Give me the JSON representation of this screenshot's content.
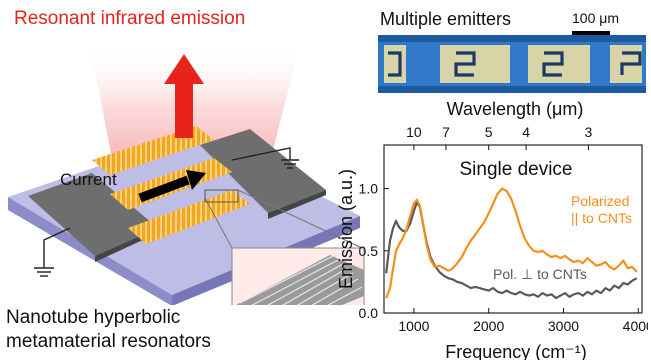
{
  "colors": {
    "title_red": "#e8231c",
    "polarized_orange": "#f39019",
    "perp_gray": "#595959",
    "gold": "#f0a020",
    "substrate": "#a7a7d6"
  },
  "left_panel": {
    "title": "Resonant infrared emission",
    "current_label": "Current",
    "caption_line1": "Nanotube hyperbolic",
    "caption_line2": "metamaterial resonators"
  },
  "emitters_panel": {
    "title": "Multiple emitters",
    "scalebar_label": "100 μm"
  },
  "chart_data": {
    "type": "line",
    "title": "Single device",
    "xlabel": "Frequency (cm⁻¹)",
    "top_xlabel": "Wavelength (μm)",
    "ylabel": "Emission (a.u.)",
    "xlim": [
      600,
      4050
    ],
    "ylim": [
      0,
      1.35
    ],
    "x_ticks": [
      1000,
      2000,
      3000,
      4000
    ],
    "x_tick_labels": [
      "1000",
      "2000",
      "3000",
      "4000"
    ],
    "y_ticks": [
      0.0,
      0.5,
      1.0
    ],
    "y_tick_labels": [
      "0.0",
      "0.5",
      "1.0"
    ],
    "top_ticks": [
      10,
      7,
      5,
      4,
      3
    ],
    "top_tick_labels": [
      "10",
      "7",
      "5",
      "4",
      "3"
    ],
    "series": [
      {
        "name": "Polarized || to CNTs",
        "label_line1": "Polarized",
        "label_line2": "|| to CNTs",
        "color": "#f39019",
        "x": [
          630,
          680,
          720,
          760,
          800,
          850,
          900,
          950,
          1000,
          1040,
          1080,
          1120,
          1170,
          1220,
          1280,
          1340,
          1400,
          1460,
          1520,
          1580,
          1640,
          1700,
          1760,
          1820,
          1880,
          1940,
          2000,
          2060,
          2120,
          2180,
          2240,
          2300,
          2360,
          2420,
          2480,
          2540,
          2600,
          2660,
          2720,
          2780,
          2840,
          2900,
          2960,
          3020,
          3080,
          3140,
          3200,
          3260,
          3320,
          3380,
          3440,
          3500,
          3560,
          3620,
          3680,
          3740,
          3800,
          3860,
          3920,
          3980
        ],
        "y": [
          0.12,
          0.2,
          0.35,
          0.5,
          0.55,
          0.6,
          0.67,
          0.78,
          0.88,
          0.91,
          0.86,
          0.73,
          0.55,
          0.43,
          0.37,
          0.38,
          0.36,
          0.34,
          0.36,
          0.4,
          0.45,
          0.52,
          0.58,
          0.63,
          0.68,
          0.73,
          0.8,
          0.88,
          0.96,
          1.0,
          0.98,
          0.92,
          0.82,
          0.7,
          0.6,
          0.54,
          0.5,
          0.49,
          0.5,
          0.47,
          0.45,
          0.46,
          0.44,
          0.46,
          0.43,
          0.41,
          0.42,
          0.4,
          0.44,
          0.41,
          0.38,
          0.39,
          0.41,
          0.37,
          0.35,
          0.38,
          0.42,
          0.36,
          0.37,
          0.33
        ]
      },
      {
        "name": "Pol. ⊥ to CNTs",
        "label_line1": "Pol. ⊥ to CNTs",
        "color": "#595959",
        "x": [
          630,
          680,
          720,
          760,
          800,
          850,
          900,
          950,
          1000,
          1040,
          1080,
          1120,
          1170,
          1220,
          1280,
          1340,
          1400,
          1460,
          1520,
          1580,
          1640,
          1700,
          1760,
          1820,
          1880,
          1940,
          2000,
          2060,
          2120,
          2180,
          2240,
          2300,
          2360,
          2420,
          2480,
          2540,
          2600,
          2660,
          2720,
          2780,
          2840,
          2900,
          2960,
          3020,
          3080,
          3140,
          3200,
          3260,
          3320,
          3380,
          3440,
          3500,
          3560,
          3620,
          3680,
          3740,
          3800,
          3860,
          3920,
          3980
        ],
        "y": [
          0.32,
          0.58,
          0.68,
          0.74,
          0.69,
          0.66,
          0.66,
          0.72,
          0.82,
          0.89,
          0.85,
          0.72,
          0.57,
          0.45,
          0.38,
          0.33,
          0.3,
          0.28,
          0.27,
          0.25,
          0.24,
          0.22,
          0.2,
          0.21,
          0.2,
          0.19,
          0.18,
          0.2,
          0.17,
          0.16,
          0.18,
          0.16,
          0.15,
          0.17,
          0.15,
          0.14,
          0.15,
          0.13,
          0.16,
          0.14,
          0.15,
          0.12,
          0.14,
          0.16,
          0.13,
          0.15,
          0.16,
          0.14,
          0.17,
          0.15,
          0.18,
          0.16,
          0.2,
          0.18,
          0.22,
          0.2,
          0.24,
          0.23,
          0.26,
          0.28
        ]
      }
    ]
  }
}
